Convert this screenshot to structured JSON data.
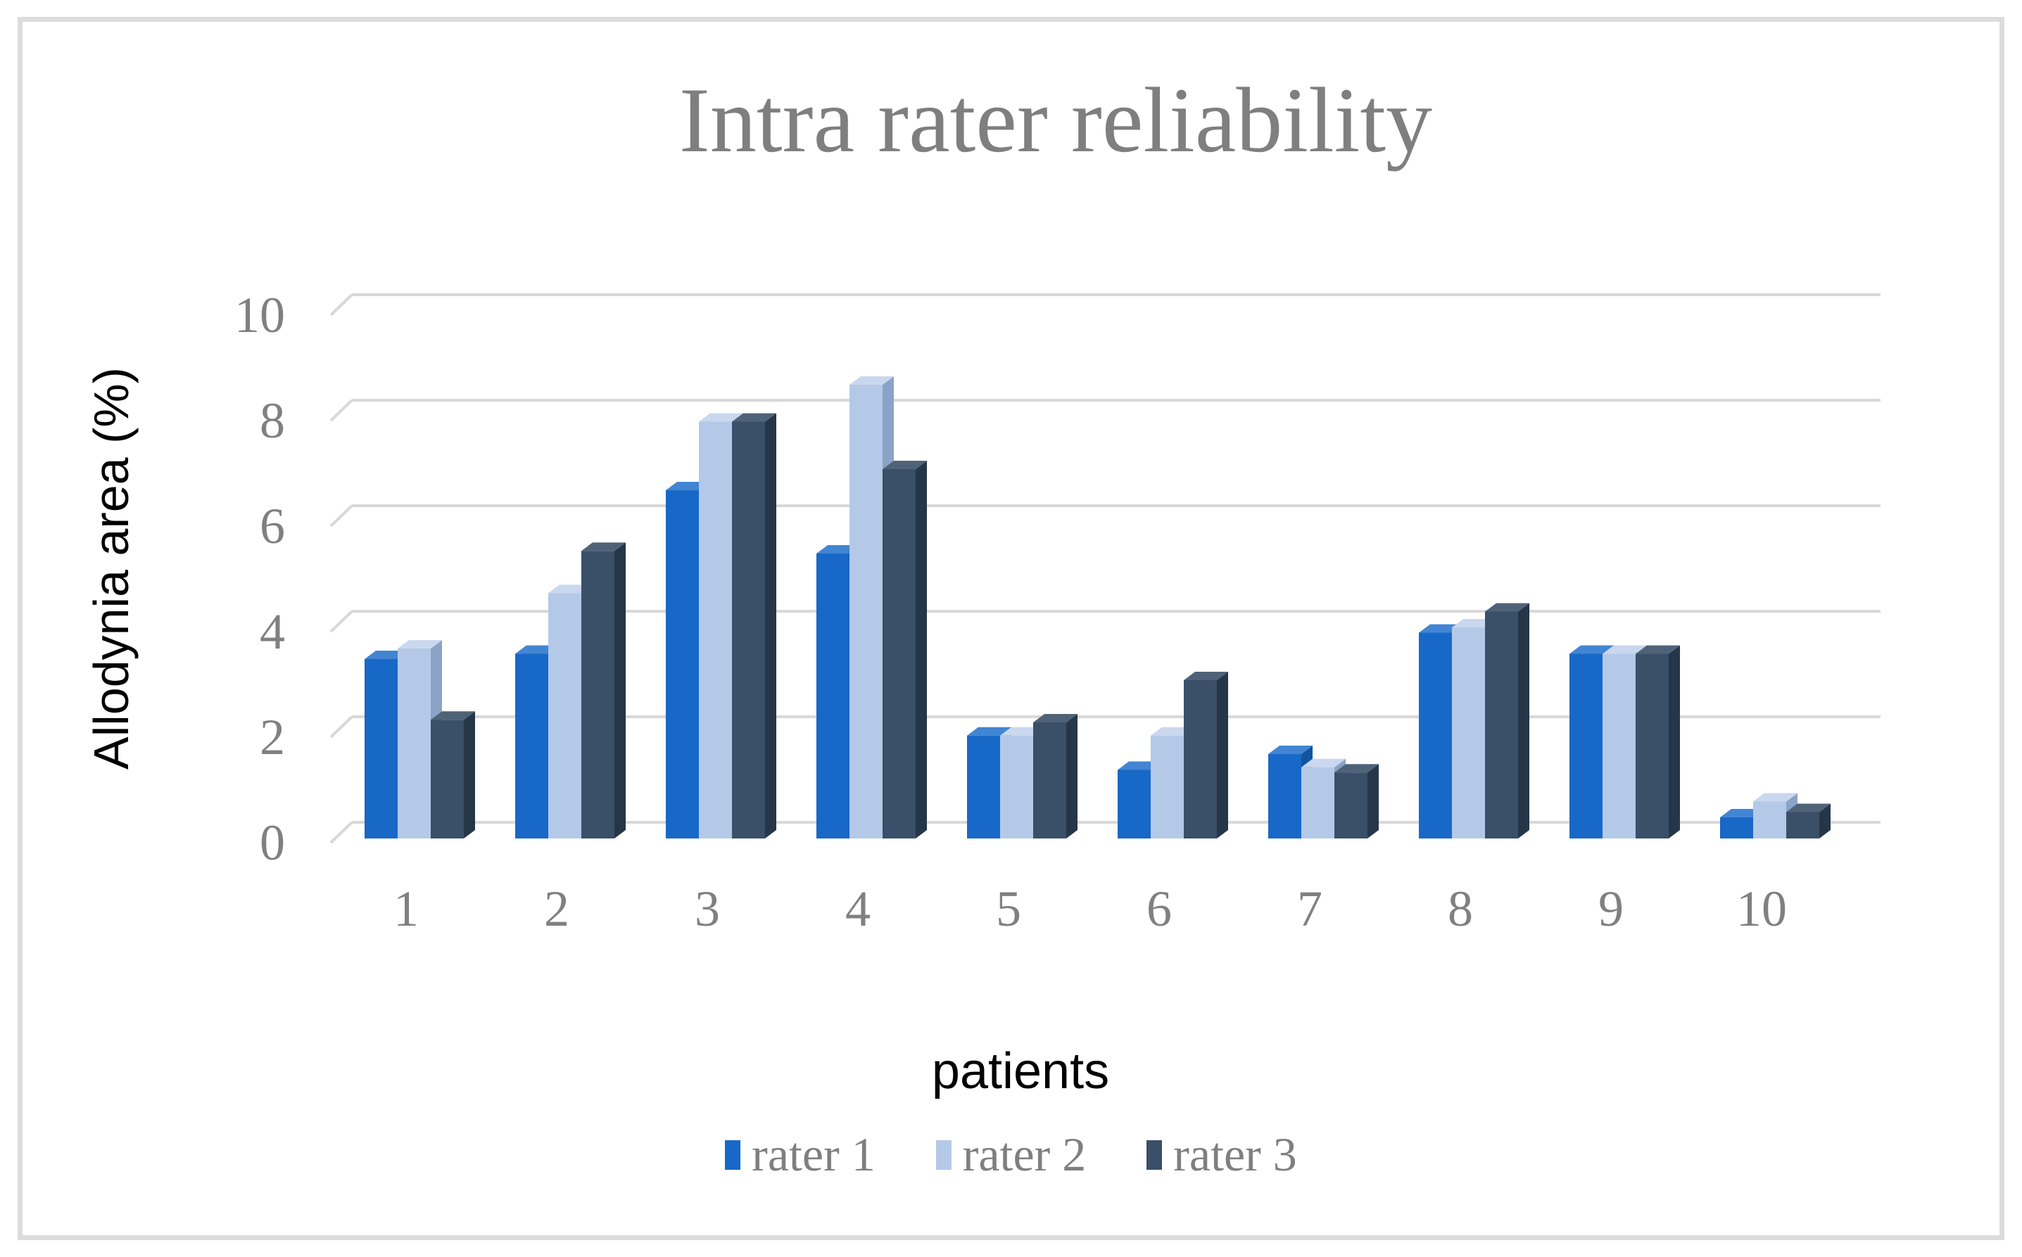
{
  "title": "Intra rater reliability",
  "chart_data": {
    "type": "bar",
    "style": "3d-clustered",
    "title": "Intra rater reliability",
    "xlabel": "patients",
    "ylabel": "Allodynia area (%)",
    "categories": [
      "1",
      "2",
      "3",
      "4",
      "5",
      "6",
      "7",
      "8",
      "9",
      "10"
    ],
    "yticks": [
      "0",
      "2",
      "4",
      "6",
      "8",
      "10"
    ],
    "ylim": [
      0,
      10
    ],
    "ytick_step": 2,
    "grid": true,
    "legend_position": "bottom",
    "series": [
      {
        "name": "rater 1",
        "color": "#1868c8",
        "color_top": "#4285d2",
        "color_side": "#11549e",
        "values": [
          3.4,
          3.5,
          6.6,
          5.4,
          1.95,
          1.3,
          1.6,
          3.9,
          3.5,
          0.4
        ]
      },
      {
        "name": "rater 2",
        "color": "#b4c9e8",
        "color_top": "#c9d7ef",
        "color_side": "#8ba3c6",
        "values": [
          3.6,
          4.65,
          7.9,
          8.6,
          1.95,
          1.95,
          1.35,
          4.0,
          3.5,
          0.7
        ]
      },
      {
        "name": "rater 3",
        "color": "#3a4f68",
        "color_top": "#4f6378",
        "color_side": "#263649",
        "values": [
          2.25,
          5.45,
          7.9,
          7.0,
          2.2,
          3.0,
          1.25,
          4.3,
          3.5,
          0.5
        ]
      }
    ]
  },
  "colors": {
    "title_text": "#7f7f7f",
    "tick_text": "#808080",
    "axis_title_text": "#000000",
    "gridline": "#d8d8d8",
    "figure_border": "#dcdcdc",
    "background": "#ffffff"
  }
}
